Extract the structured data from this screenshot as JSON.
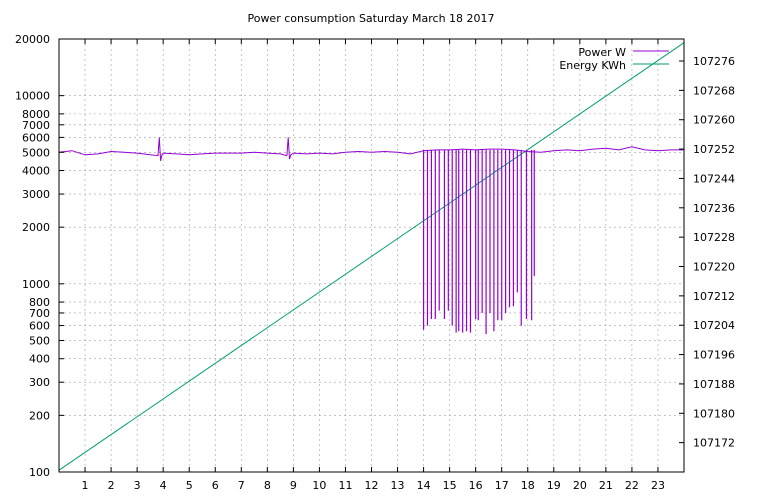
{
  "chart_data": {
    "type": "line",
    "title": "Power consumption Saturday March 18 2017",
    "xlabel": "",
    "ylabel": "",
    "x_range": [
      0,
      24
    ],
    "x_ticks": [
      1,
      2,
      3,
      4,
      5,
      6,
      7,
      8,
      9,
      10,
      11,
      12,
      13,
      14,
      15,
      16,
      17,
      18,
      19,
      20,
      21,
      22,
      23
    ],
    "y_scale": "log",
    "y_range": [
      100,
      20000
    ],
    "y_ticks": [
      {
        "value": 100,
        "label": "100"
      },
      {
        "value": 200,
        "label": "200"
      },
      {
        "value": 300,
        "label": "300"
      },
      {
        "value": 400,
        "label": "400"
      },
      {
        "value": 500,
        "label": "500"
      },
      {
        "value": 600,
        "label": "600"
      },
      {
        "value": 700,
        "label": "700"
      },
      {
        "value": 800,
        "label": "800"
      },
      {
        "value": 1000,
        "label": "1000"
      },
      {
        "value": 2000,
        "label": "2000"
      },
      {
        "value": 3000,
        "label": "3000"
      },
      {
        "value": 4000,
        "label": "4000"
      },
      {
        "value": 5000,
        "label": "5000"
      },
      {
        "value": 6000,
        "label": "6000"
      },
      {
        "value": 7000,
        "label": "7000"
      },
      {
        "value": 8000,
        "label": "8000"
      },
      {
        "value": 10000,
        "label": "10000"
      },
      {
        "value": 20000,
        "label": "20000"
      }
    ],
    "y2_range": [
      107164,
      107282
    ],
    "y2_ticks": [
      107172,
      107180,
      107188,
      107196,
      107204,
      107212,
      107220,
      107228,
      107236,
      107244,
      107252,
      107260,
      107268,
      107276
    ],
    "grid": true,
    "legend_position": "top-right",
    "colors": {
      "power": "#9400d3",
      "energy": "#009e73"
    },
    "series": [
      {
        "name": "Power W",
        "axis": "y",
        "color": "#9400d3",
        "x": [
          0,
          0.5,
          1,
          1.5,
          2,
          2.5,
          3,
          3.5,
          3.8,
          3.85,
          3.9,
          3.95,
          4,
          4.5,
          5,
          5.5,
          6,
          6.5,
          7,
          7.5,
          8,
          8.5,
          8.75,
          8.8,
          8.85,
          8.9,
          9,
          9.5,
          10,
          10.5,
          11,
          11.5,
          12,
          12.5,
          13,
          13.5,
          14,
          14.5,
          15,
          15.5,
          16,
          16.5,
          17,
          17.5,
          18,
          18.5,
          19,
          19.5,
          20,
          20.5,
          21,
          21.5,
          22,
          22.5,
          23,
          23.5,
          24
        ],
        "y": [
          5000,
          5100,
          4850,
          4900,
          5050,
          5000,
          4950,
          4850,
          4800,
          6000,
          4500,
          4850,
          4950,
          4900,
          4850,
          4900,
          4950,
          4950,
          4950,
          5000,
          4950,
          4900,
          4800,
          6000,
          4600,
          4850,
          4950,
          4900,
          4950,
          4900,
          5000,
          5050,
          5000,
          5050,
          5000,
          4900,
          5100,
          5150,
          5150,
          5200,
          5150,
          5200,
          5200,
          5150,
          5050,
          5000,
          5100,
          5150,
          5100,
          5200,
          5250,
          5150,
          5350,
          5150,
          5100,
          5150,
          5150
        ]
      },
      {
        "name": "Energy KWh",
        "axis": "y2",
        "color": "#009e73",
        "x": [
          0,
          24
        ],
        "y": [
          107164.5,
          107281
        ]
      }
    ],
    "power_drops": [
      {
        "x": 14.0,
        "y": 570
      },
      {
        "x": 14.15,
        "y": 600
      },
      {
        "x": 14.3,
        "y": 650
      },
      {
        "x": 14.45,
        "y": 650
      },
      {
        "x": 14.6,
        "y": 720
      },
      {
        "x": 14.8,
        "y": 650
      },
      {
        "x": 14.95,
        "y": 720
      },
      {
        "x": 15.1,
        "y": 600
      },
      {
        "x": 15.25,
        "y": 550
      },
      {
        "x": 15.35,
        "y": 560
      },
      {
        "x": 15.5,
        "y": 550
      },
      {
        "x": 15.65,
        "y": 560
      },
      {
        "x": 15.8,
        "y": 550
      },
      {
        "x": 16.0,
        "y": 650
      },
      {
        "x": 16.1,
        "y": 640
      },
      {
        "x": 16.25,
        "y": 700
      },
      {
        "x": 16.4,
        "y": 540
      },
      {
        "x": 16.55,
        "y": 700
      },
      {
        "x": 16.7,
        "y": 560
      },
      {
        "x": 16.85,
        "y": 640
      },
      {
        "x": 17.0,
        "y": 640
      },
      {
        "x": 17.15,
        "y": 700
      },
      {
        "x": 17.3,
        "y": 750
      },
      {
        "x": 17.45,
        "y": 760
      },
      {
        "x": 17.6,
        "y": 900
      },
      {
        "x": 17.75,
        "y": 600
      },
      {
        "x": 17.95,
        "y": 650
      },
      {
        "x": 18.15,
        "y": 640
      },
      {
        "x": 18.25,
        "y": 1100
      }
    ]
  }
}
